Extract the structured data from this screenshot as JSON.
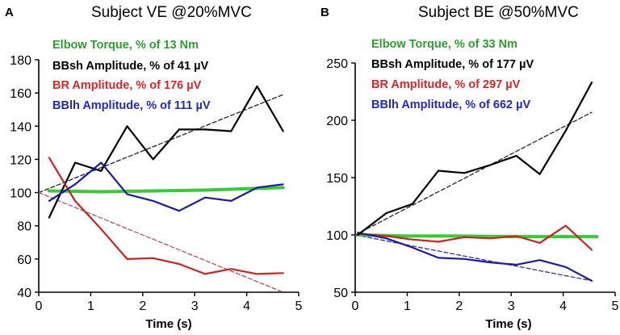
{
  "chart_data": [
    {
      "type": "line",
      "panel": "A",
      "title": "Subject VE @20%MVC",
      "xlabel": "Time (s)",
      "ylabel": "",
      "xlim": [
        0,
        5
      ],
      "ylim": [
        40,
        180
      ],
      "xticks": [
        0,
        1,
        2,
        3,
        4,
        5
      ],
      "yticks": [
        40,
        60,
        80,
        100,
        120,
        140,
        160,
        180
      ],
      "legend": [
        {
          "text": "Elbow Torque,      % of   13 Nm",
          "color": "#2ca02c"
        },
        {
          "text": "BBsh Amplitude, % of    41 µV",
          "color": "#000000"
        },
        {
          "text": "BR Amplitude,     % of 176 µV",
          "color": "#d62728"
        },
        {
          "text": "BBlh Amplitude,  % of 111 µV",
          "color": "#1f2bbf"
        }
      ],
      "series": [
        {
          "name": "Elbow Torque",
          "color": "#33cc33",
          "width": 4,
          "dash": false,
          "x": [
            0.2,
            1.2,
            2.2,
            3.2,
            4.2,
            4.7
          ],
          "y": [
            101,
            100.5,
            101,
            101.5,
            102.5,
            103
          ]
        },
        {
          "name": "BBsh Amplitude",
          "color": "#000000",
          "width": 2.2,
          "dash": false,
          "x": [
            0.2,
            0.7,
            1.2,
            1.7,
            2.2,
            2.7,
            3.2,
            3.7,
            4.2,
            4.7
          ],
          "y": [
            85,
            118,
            113,
            140,
            120,
            138,
            138,
            137,
            164,
            137
          ]
        },
        {
          "name": "BR Amplitude",
          "color": "#cc2222",
          "width": 2.2,
          "dash": false,
          "x": [
            0.2,
            0.7,
            1.2,
            1.7,
            2.2,
            2.7,
            3.2,
            3.7,
            4.2,
            4.7
          ],
          "y": [
            121,
            95,
            78,
            60,
            60.5,
            57,
            51,
            54,
            51,
            51.5
          ]
        },
        {
          "name": "BBlh Amplitude",
          "color": "#1a1aa6",
          "width": 2.2,
          "dash": false,
          "x": [
            0.2,
            0.7,
            1.2,
            1.7,
            2.2,
            2.7,
            3.2,
            3.7,
            4.2,
            4.7
          ],
          "y": [
            95,
            105,
            118,
            99,
            95,
            89,
            97,
            95,
            103,
            105
          ]
        },
        {
          "name": "BBsh trend",
          "color": "#222222",
          "width": 1.3,
          "dash": true,
          "x": [
            0,
            4.7
          ],
          "y": [
            100,
            159
          ]
        },
        {
          "name": "BR trend",
          "color": "#b05060",
          "width": 1.3,
          "dash": true,
          "x": [
            0,
            4.7
          ],
          "y": [
            100,
            40
          ]
        }
      ]
    },
    {
      "type": "line",
      "panel": "B",
      "title": "Subject BE @50%MVC",
      "xlabel": "Time (s)",
      "ylabel": "",
      "xlim": [
        0,
        5
      ],
      "ylim": [
        50,
        250
      ],
      "xticks": [
        0,
        1,
        2,
        3,
        4,
        5
      ],
      "yticks": [
        50,
        100,
        150,
        200,
        250
      ],
      "legend": [
        {
          "text": "Elbow Torque,      % of   33 Nm",
          "color": "#2ca02c"
        },
        {
          "text": "BBsh Amplitude, % of 177 µV",
          "color": "#000000"
        },
        {
          "text": "BR Amplitude,     % of 297 µV",
          "color": "#d62728"
        },
        {
          "text": "BBlh Amplitude,  % of 662 µV",
          "color": "#1f2bbf"
        }
      ],
      "series": [
        {
          "name": "Elbow Torque",
          "color": "#33cc33",
          "width": 4,
          "dash": false,
          "x": [
            0.05,
            1,
            2,
            3,
            4,
            4.65
          ],
          "y": [
            100,
            99,
            99,
            98.5,
            98.5,
            98.5
          ]
        },
        {
          "name": "BR Amplitude",
          "color": "#cc2222",
          "width": 2.2,
          "dash": false,
          "x": [
            0.05,
            0.6,
            1.1,
            1.6,
            2.1,
            2.6,
            3.1,
            3.55,
            4.05,
            4.55
          ],
          "y": [
            101,
            99,
            96,
            94,
            98,
            97,
            99,
            93,
            108,
            87
          ]
        },
        {
          "name": "BBlh Amplitude",
          "color": "#1a1aa6",
          "width": 2.2,
          "dash": false,
          "x": [
            0.05,
            0.6,
            1.1,
            1.6,
            2.1,
            2.6,
            3.1,
            3.55,
            4.05,
            4.55
          ],
          "y": [
            102,
            97,
            89,
            80,
            79,
            76,
            74,
            78,
            72,
            60
          ]
        },
        {
          "name": "BBsh Amplitude",
          "color": "#000000",
          "width": 2.2,
          "dash": false,
          "x": [
            0.05,
            0.6,
            1.1,
            1.6,
            2.1,
            2.6,
            3.1,
            3.55,
            4.05,
            4.55
          ],
          "y": [
            100,
            119,
            127,
            156,
            154,
            161,
            169,
            153,
            191,
            233
          ]
        },
        {
          "name": "BBsh trend",
          "color": "#222222",
          "width": 1.3,
          "dash": true,
          "x": [
            0,
            4.55
          ],
          "y": [
            100,
            207
          ]
        },
        {
          "name": "BBlh trend",
          "color": "#333399",
          "width": 1.3,
          "dash": true,
          "x": [
            0,
            4.55
          ],
          "y": [
            100,
            60
          ]
        }
      ]
    }
  ]
}
